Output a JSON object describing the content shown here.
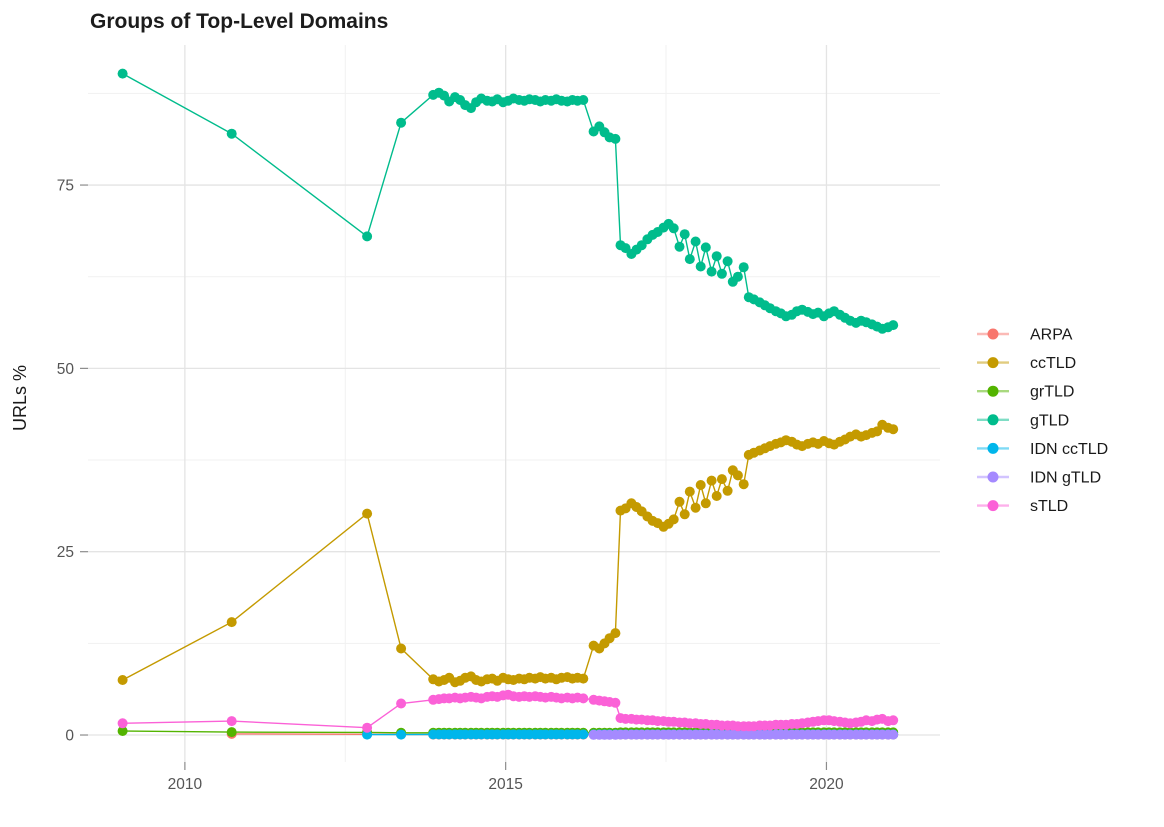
{
  "title": "Groups of Top-Level Domains",
  "axes": {
    "y_label": "URLs %",
    "x_tick_labels": [
      "2010",
      "2015",
      "2020"
    ],
    "x_tick_values": [
      2010,
      2015,
      2020
    ],
    "x_minor": [
      2012.5,
      2017.5
    ],
    "y_tick_labels": [
      "0",
      "25",
      "50",
      "75"
    ],
    "y_tick_values": [
      0,
      25,
      50,
      75
    ],
    "y_minor": [
      12.5,
      37.5,
      62.5,
      87.5
    ],
    "grid": "on",
    "major_grid_color": "#e4e4e4",
    "minor_grid_color": "#f1f1f1",
    "tick_color": "#8c8c8c"
  },
  "legend": {
    "position": "right",
    "items": [
      {
        "label": "ARPA",
        "color": "#F8766D"
      },
      {
        "label": "ccTLD",
        "color": "#C49A00"
      },
      {
        "label": "grTLD",
        "color": "#53B400"
      },
      {
        "label": "gTLD",
        "color": "#00BC8C"
      },
      {
        "label": "IDN ccTLD",
        "color": "#00B6EB"
      },
      {
        "label": "IDN gTLD",
        "color": "#A58AFF"
      },
      {
        "label": "sTLD",
        "color": "#FB61D7"
      }
    ]
  },
  "chart_data": {
    "type": "line",
    "title": "Groups of Top-Level Domains",
    "xlabel": "",
    "ylabel": "URLs %",
    "x_unit": "year",
    "xlim": [
      2008.49,
      2021.77
    ],
    "ylim": [
      -3.68,
      94.1
    ],
    "legend_position": "right",
    "x_grids": {
      "A": [
        2013.87,
        2013.96,
        2014.04,
        2014.12,
        2014.21,
        2014.29,
        2014.37,
        2014.46,
        2014.54,
        2014.62,
        2014.71,
        2014.79,
        2014.87,
        2014.96,
        2015.04,
        2015.12,
        2015.21,
        2015.29,
        2015.37,
        2015.46,
        2015.54,
        2015.62,
        2015.71,
        2015.79,
        2015.87,
        2015.96,
        2016.04,
        2016.12,
        2016.21
      ],
      "B": [
        2016.37,
        2016.46,
        2016.54,
        2016.62,
        2016.71
      ],
      "C": [
        2016.79,
        2016.87,
        2016.96,
        2017.04,
        2017.12,
        2017.21,
        2017.29,
        2017.37,
        2017.46,
        2017.54,
        2017.62,
        2017.71,
        2017.79,
        2017.87,
        2017.96,
        2018.04,
        2018.12,
        2018.21,
        2018.29,
        2018.37,
        2018.46,
        2018.54,
        2018.62,
        2018.71,
        2018.79,
        2018.87,
        2018.96,
        2019.04,
        2019.12,
        2019.21,
        2019.29,
        2019.37,
        2019.46,
        2019.54,
        2019.62,
        2019.71,
        2019.79,
        2019.87,
        2019.96,
        2020.04,
        2020.12,
        2020.21,
        2020.29,
        2020.37,
        2020.46,
        2020.54,
        2020.62,
        2020.71,
        2020.79,
        2020.87,
        2020.96,
        2021.04
      ]
    },
    "series": [
      {
        "name": "ARPA",
        "color": "#F8766D",
        "points_xy": [
          [
            2010.73,
            0.15
          ],
          [
            2012.84,
            0.1
          ],
          [
            2013.37,
            0.08
          ]
        ],
        "segments": [
          {
            "grid": "A",
            "const": 0.05
          },
          {
            "grid": "B",
            "const": 0.05
          },
          {
            "grid": "C",
            "const": 0.05
          }
        ]
      },
      {
        "name": "ccTLD",
        "color": "#C49A00",
        "points_xy": [
          [
            2009.03,
            7.5
          ],
          [
            2010.73,
            15.4
          ],
          [
            2012.84,
            30.2
          ],
          [
            2013.37,
            11.8
          ]
        ],
        "segments": [
          {
            "grid": "A",
            "y": [
              7.6,
              7.3,
              7.5,
              7.8,
              7.2,
              7.4,
              7.8,
              8.0,
              7.5,
              7.3,
              7.6,
              7.7,
              7.4,
              7.8,
              7.6,
              7.5,
              7.7,
              7.6,
              7.8,
              7.7,
              7.9,
              7.7,
              7.8,
              7.6,
              7.8,
              7.9,
              7.7,
              7.8,
              7.7
            ]
          },
          {
            "grid": "B",
            "y": [
              12.2,
              11.8,
              12.5,
              13.2,
              13.9
            ]
          },
          {
            "grid": "C",
            "y": [
              30.6,
              30.9,
              31.6,
              31.1,
              30.5,
              29.8,
              29.2,
              28.9,
              28.4,
              28.8,
              29.4,
              31.8,
              30.1,
              33.2,
              31.0,
              34.1,
              31.6,
              34.7,
              32.6,
              34.9,
              33.3,
              36.1,
              35.4,
              34.2,
              38.2,
              38.5,
              38.8,
              39.1,
              39.4,
              39.7,
              39.9,
              40.2,
              40.0,
              39.6,
              39.4,
              39.7,
              39.9,
              39.7,
              40.1,
              39.8,
              39.6,
              40.0,
              40.3,
              40.7,
              41.0,
              40.7,
              40.9,
              41.2,
              41.4,
              42.3,
              41.9,
              41.7
            ]
          }
        ]
      },
      {
        "name": "grTLD",
        "color": "#53B400",
        "points_xy": [
          [
            2009.03,
            0.55
          ],
          [
            2010.73,
            0.4
          ],
          [
            2012.84,
            0.35
          ],
          [
            2013.37,
            0.3
          ]
        ],
        "segments": [
          {
            "grid": "A",
            "const": 0.3
          },
          {
            "grid": "B",
            "const": 0.3
          },
          {
            "grid": "C",
            "const": 0.35
          }
        ]
      },
      {
        "name": "gTLD",
        "color": "#00BC8C",
        "points_xy": [
          [
            2009.03,
            90.2
          ],
          [
            2010.73,
            82.0
          ],
          [
            2012.84,
            68.0
          ],
          [
            2013.37,
            83.5
          ]
        ],
        "segments": [
          {
            "grid": "A",
            "y": [
              87.3,
              87.6,
              87.2,
              86.4,
              87.0,
              86.6,
              85.9,
              85.5,
              86.3,
              86.8,
              86.5,
              86.4,
              86.7,
              86.3,
              86.5,
              86.8,
              86.6,
              86.5,
              86.7,
              86.6,
              86.4,
              86.6,
              86.5,
              86.7,
              86.5,
              86.4,
              86.6,
              86.5,
              86.6
            ]
          },
          {
            "grid": "B",
            "y": [
              82.3,
              83.0,
              82.2,
              81.5,
              81.3
            ]
          },
          {
            "grid": "C",
            "y": [
              66.8,
              66.4,
              65.6,
              66.2,
              66.8,
              67.6,
              68.2,
              68.6,
              69.2,
              69.7,
              69.1,
              66.6,
              68.3,
              64.9,
              67.3,
              63.9,
              66.5,
              63.2,
              65.3,
              62.9,
              64.6,
              61.8,
              62.5,
              63.8,
              59.7,
              59.4,
              59.0,
              58.6,
              58.2,
              57.8,
              57.5,
              57.1,
              57.3,
              57.8,
              58.0,
              57.7,
              57.4,
              57.6,
              57.1,
              57.5,
              57.8,
              57.3,
              56.9,
              56.5,
              56.2,
              56.5,
              56.3,
              56.0,
              55.7,
              55.4,
              55.6,
              55.9
            ]
          }
        ]
      },
      {
        "name": "IDN ccTLD",
        "color": "#00B6EB",
        "points_xy": [
          [
            2012.84,
            0.05
          ],
          [
            2013.37,
            0.05
          ]
        ],
        "segments": [
          {
            "grid": "A",
            "const": 0.08
          },
          {
            "grid": "B",
            "const": 0.08
          },
          {
            "grid": "C",
            "const": 0.08
          }
        ]
      },
      {
        "name": "IDN gTLD",
        "color": "#A58AFF",
        "points_xy": [],
        "segments": [
          {
            "grid": "B",
            "const": 0.03
          },
          {
            "grid": "C",
            "const": 0.05
          }
        ]
      },
      {
        "name": "sTLD",
        "color": "#FB61D7",
        "points_xy": [
          [
            2009.03,
            1.6
          ],
          [
            2010.73,
            1.9
          ],
          [
            2012.84,
            1.0
          ],
          [
            2013.37,
            4.3
          ]
        ],
        "segments": [
          {
            "grid": "A",
            "y": [
              4.8,
              4.9,
              5.0,
              5.0,
              5.1,
              5.0,
              5.1,
              5.2,
              5.1,
              5.0,
              5.2,
              5.3,
              5.2,
              5.4,
              5.5,
              5.3,
              5.2,
              5.3,
              5.2,
              5.3,
              5.2,
              5.1,
              5.2,
              5.1,
              5.0,
              5.1,
              5.0,
              5.1,
              5.0
            ]
          },
          {
            "grid": "B",
            "y": [
              4.8,
              4.7,
              4.6,
              4.5,
              4.4
            ]
          },
          {
            "grid": "C",
            "y": [
              2.3,
              2.2,
              2.2,
              2.1,
              2.1,
              2.0,
              2.0,
              1.9,
              1.9,
              1.8,
              1.8,
              1.7,
              1.7,
              1.6,
              1.6,
              1.5,
              1.5,
              1.4,
              1.4,
              1.3,
              1.3,
              1.3,
              1.2,
              1.2,
              1.2,
              1.2,
              1.3,
              1.3,
              1.3,
              1.4,
              1.4,
              1.4,
              1.5,
              1.5,
              1.6,
              1.7,
              1.8,
              1.9,
              2.0,
              2.0,
              1.9,
              1.8,
              1.7,
              1.6,
              1.7,
              1.8,
              2.0,
              1.9,
              2.1,
              2.2,
              1.9,
              2.0
            ]
          }
        ]
      }
    ]
  }
}
